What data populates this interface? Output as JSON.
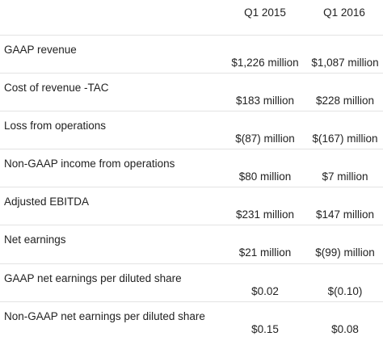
{
  "header": {
    "col_1": "Q1 2015",
    "col_2": "Q1 2016"
  },
  "rows": [
    {
      "metric": "GAAP revenue",
      "q1_2015": "$1,226 million",
      "q1_2016": "$1,087 million"
    },
    {
      "metric": "Cost of revenue -TAC",
      "q1_2015": "$183 million",
      "q1_2016": "$228 million"
    },
    {
      "metric": "Loss from operations",
      "q1_2015": "$(87) million",
      "q1_2016": "$(167) million"
    },
    {
      "metric": "Non-GAAP income from operations",
      "q1_2015": "$80 million",
      "q1_2016": "$7 million"
    },
    {
      "metric": "Adjusted EBITDA",
      "q1_2015": "$231 million",
      "q1_2016": "$147 million"
    },
    {
      "metric": "Net earnings",
      "q1_2015": "$21 million",
      "q1_2016": "$(99) million"
    },
    {
      "metric": "GAAP net earnings per diluted share",
      "q1_2015": "$0.02",
      "q1_2016": "$(0.10)"
    },
    {
      "metric": "Non-GAAP net earnings per diluted share",
      "q1_2015": "$0.15",
      "q1_2016": "$0.08"
    }
  ]
}
